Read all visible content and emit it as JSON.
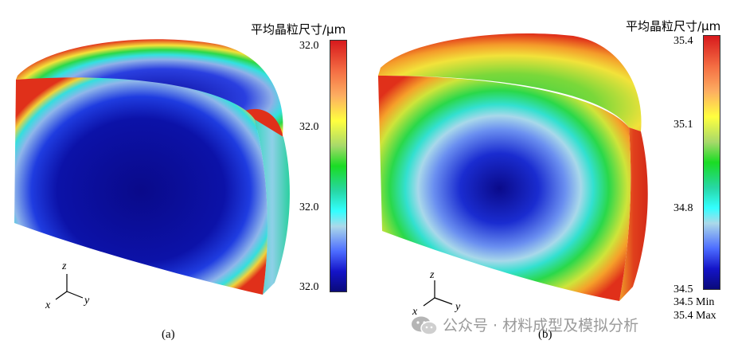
{
  "panel_a": {
    "colorbar_title": "平均晶粒尺寸/μm",
    "ticks": [
      "32.0",
      "32.0",
      "32.0",
      "32.0"
    ],
    "axis": {
      "z": "z",
      "x": "x",
      "y": "y"
    },
    "caption": "(a)"
  },
  "panel_b": {
    "colorbar_title": "平均晶粒尺寸/μm",
    "ticks": [
      "35.4",
      "35.1",
      "34.8",
      "34.5"
    ],
    "min_label": "34.5 Min",
    "max_label": "35.4 Max",
    "axis": {
      "z": "z",
      "x": "x",
      "y": "y"
    },
    "caption": "(b)"
  },
  "watermark": "公众号 · 材料成型及模拟分析",
  "colors": {
    "low": "#0a0a7a",
    "mid": "#1adc24",
    "high": "#d7191c"
  }
}
